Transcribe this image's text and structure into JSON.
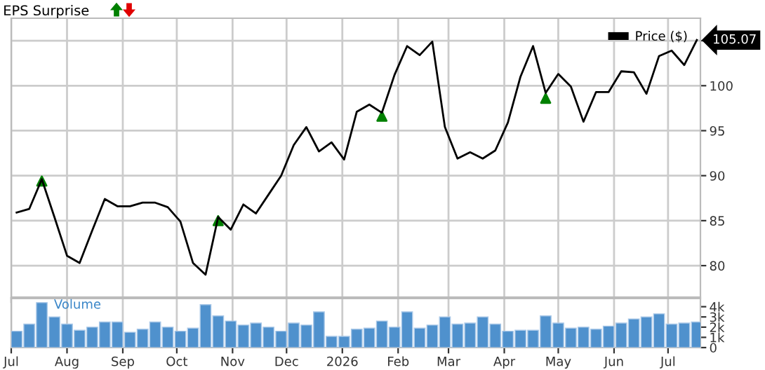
{
  "chart_data": [
    {
      "type": "line",
      "title": "EPS Surprise",
      "x": [
        "2025-07-04",
        "2025-07-11",
        "2025-07-18",
        "2025-07-25",
        "2025-08-01",
        "2025-08-08",
        "2025-08-15",
        "2025-08-22",
        "2025-08-29",
        "2025-09-05",
        "2025-09-12",
        "2025-09-19",
        "2025-09-26",
        "2025-10-03",
        "2025-10-10",
        "2025-10-17",
        "2025-10-24",
        "2025-10-31",
        "2025-11-07",
        "2025-11-14",
        "2025-11-21",
        "2025-11-28",
        "2025-12-05",
        "2025-12-12",
        "2025-12-19",
        "2025-12-26",
        "2026-01-02",
        "2026-01-09",
        "2026-01-16",
        "2026-01-23",
        "2026-01-30",
        "2026-02-06",
        "2026-02-13",
        "2026-02-20",
        "2026-02-27",
        "2026-03-06",
        "2026-03-13",
        "2026-03-20",
        "2026-03-27",
        "2026-04-03",
        "2026-04-10",
        "2026-04-17",
        "2026-04-24",
        "2026-05-01",
        "2026-05-08",
        "2026-05-15",
        "2026-05-22",
        "2026-05-29",
        "2026-06-05",
        "2026-06-12",
        "2026-06-19",
        "2026-06-26",
        "2026-07-03",
        "2026-07-10",
        "2026-07-17"
      ],
      "series": [
        {
          "name": "Price ($)",
          "type": "line",
          "color": "#000000",
          "values": [
            85.9,
            86.3,
            89.6,
            85.4,
            81.1,
            80.3,
            83.9,
            87.4,
            86.6,
            86.6,
            87.0,
            87.0,
            86.5,
            84.9,
            80.3,
            79.0,
            85.4,
            84.0,
            86.8,
            85.8,
            87.9,
            90.0,
            93.4,
            95.4,
            92.7,
            93.7,
            91.8,
            97.1,
            97.9,
            97.0,
            101.2,
            104.4,
            103.4,
            104.9,
            95.4,
            91.9,
            92.6,
            91.9,
            92.8,
            95.9,
            101.0,
            104.4,
            99.2,
            101.3,
            99.9,
            96.0,
            99.3,
            99.3,
            101.6,
            101.5,
            99.1,
            103.3,
            103.9,
            102.3,
            105.07
          ]
        },
        {
          "type": "scatter",
          "color": "#008000",
          "marker": "triangle",
          "x": [
            "2025-07-18",
            "2025-10-24",
            "2026-01-23",
            "2026-04-24"
          ],
          "values": [
            89.4,
            85.0,
            96.6,
            98.6
          ]
        }
      ],
      "xlim": [
        "2025-07-01",
        "2026-07-19"
      ],
      "xticks": [
        {
          "value": "2025-07-01",
          "label": null
        },
        {
          "value": "2025-08-01",
          "label": null
        },
        {
          "value": "2025-09-01",
          "label": null
        },
        {
          "value": "2025-10-01",
          "label": null
        },
        {
          "value": "2025-11-01",
          "label": null
        },
        {
          "value": "2025-12-01",
          "label": null
        },
        {
          "value": "2026-01-01",
          "label": null
        },
        {
          "value": "2026-02-01",
          "label": null
        },
        {
          "value": "2026-03-01",
          "label": null
        },
        {
          "value": "2026-04-01",
          "label": null
        },
        {
          "value": "2026-05-01",
          "label": null
        },
        {
          "value": "2026-06-01",
          "label": null
        },
        {
          "value": "2026-07-01",
          "label": null
        }
      ],
      "ylim": [
        76.5,
        107.5
      ],
      "yticks": [
        80,
        85,
        90,
        95,
        100,
        {
          "value": 105,
          "label": null
        }
      ],
      "annotations": [
        {
          "text": "105.07",
          "x": "2026-07-17",
          "y": 105.07
        }
      ],
      "grid": true,
      "legend": "top right",
      "tick_labels": "y"
    },
    {
      "type": "bar",
      "annotations": [
        "Volume"
      ],
      "color": "#4f91cd",
      "x": [
        "2025-07-04",
        "2025-07-11",
        "2025-07-18",
        "2025-07-25",
        "2025-08-01",
        "2025-08-08",
        "2025-08-15",
        "2025-08-22",
        "2025-08-29",
        "2025-09-05",
        "2025-09-12",
        "2025-09-19",
        "2025-09-26",
        "2025-10-03",
        "2025-10-10",
        "2025-10-17",
        "2025-10-24",
        "2025-10-31",
        "2025-11-07",
        "2025-11-14",
        "2025-11-21",
        "2025-11-28",
        "2025-12-05",
        "2025-12-12",
        "2025-12-19",
        "2025-12-26",
        "2026-01-02",
        "2026-01-09",
        "2026-01-16",
        "2026-01-23",
        "2026-01-30",
        "2026-02-06",
        "2026-02-13",
        "2026-02-20",
        "2026-02-27",
        "2026-03-06",
        "2026-03-13",
        "2026-03-20",
        "2026-03-27",
        "2026-04-03",
        "2026-04-10",
        "2026-04-17",
        "2026-04-24",
        "2026-05-01",
        "2026-05-08",
        "2026-05-15",
        "2026-05-22",
        "2026-05-29",
        "2026-06-05",
        "2026-06-12",
        "2026-06-19",
        "2026-06-26",
        "2026-07-03",
        "2026-07-10",
        "2026-07-17"
      ],
      "values": [
        1600,
        2300,
        4400,
        3000,
        2300,
        1700,
        2000,
        2500,
        2500,
        1500,
        1800,
        2500,
        2000,
        1600,
        1900,
        4200,
        3100,
        2600,
        2200,
        2400,
        2000,
        1600,
        2400,
        2200,
        3500,
        1100,
        1100,
        1800,
        1900,
        2600,
        2000,
        3500,
        1900,
        2200,
        3000,
        2300,
        2400,
        3000,
        2300,
        1600,
        1700,
        1700,
        3100,
        2400,
        1900,
        2000,
        1800,
        2100,
        2400,
        2800,
        3000,
        3300,
        2300,
        2400,
        2500
      ],
      "xlim": [
        "2025-07-01",
        "2026-07-19"
      ],
      "xticks": [
        {
          "value": "2025-07-01",
          "label": "Jul"
        },
        {
          "value": "2025-08-01",
          "label": "Aug"
        },
        {
          "value": "2025-09-01",
          "label": "Sep"
        },
        {
          "value": "2025-10-01",
          "label": "Oct"
        },
        {
          "value": "2025-11-01",
          "label": "Nov"
        },
        {
          "value": "2025-12-01",
          "label": "Dec"
        },
        {
          "value": "2026-01-01",
          "label": "2026"
        },
        {
          "value": "2026-02-01",
          "label": "Feb"
        },
        {
          "value": "2026-03-01",
          "label": "Mar"
        },
        {
          "value": "2026-04-01",
          "label": "Apr"
        },
        {
          "value": "2026-05-01",
          "label": "May"
        },
        {
          "value": "2026-06-01",
          "label": "Jun"
        },
        {
          "value": "2026-07-01",
          "label": "Jul"
        }
      ],
      "ylim": [
        0,
        4800
      ],
      "yticks": [
        0,
        {
          "value": 1000,
          "label": "1k"
        },
        {
          "value": 2000,
          "label": "2k"
        },
        {
          "value": 3000,
          "label": "3k"
        },
        {
          "value": 4000,
          "label": "4k"
        }
      ],
      "grid": "x"
    }
  ]
}
